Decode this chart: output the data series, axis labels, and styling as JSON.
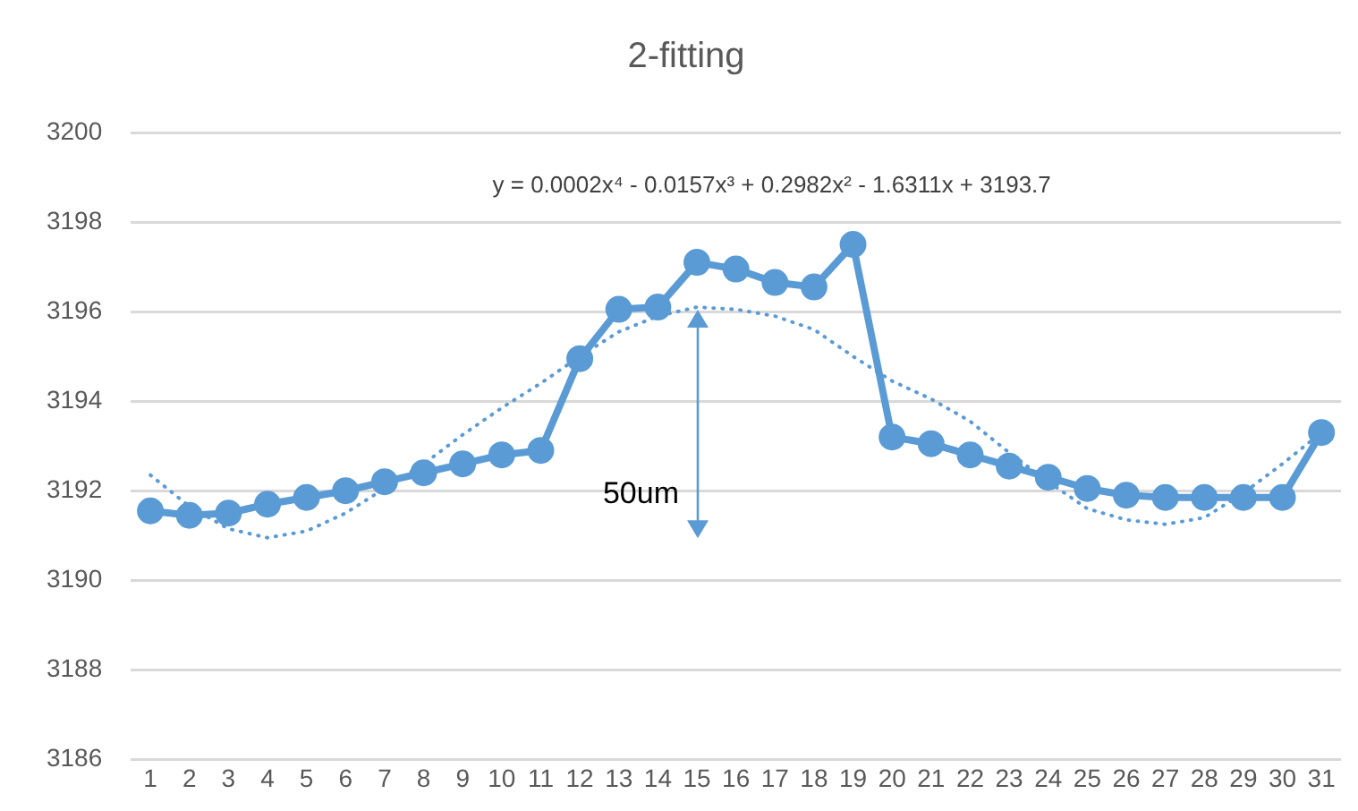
{
  "chart_data": {
    "type": "line",
    "title": "2-fitting",
    "annotations": [
      "y = 0.0002x⁴ - 0.0157x³ + 0.2982x² - 1.6311x + 3193.7",
      {
        "text": "50um",
        "x": 15,
        "y": 3196.05
      }
    ],
    "x": [
      1,
      2,
      3,
      4,
      5,
      6,
      7,
      8,
      9,
      10,
      11,
      12,
      13,
      14,
      15,
      16,
      17,
      18,
      19,
      20,
      21,
      22,
      23,
      24,
      25,
      26,
      27,
      28,
      29,
      30,
      31
    ],
    "series": [
      {
        "color": "#5b9bd5",
        "marker": "circle",
        "line_style": "solid",
        "values": [
          3191.55,
          3191.45,
          3191.5,
          3191.7,
          3191.85,
          3192.0,
          3192.2,
          3192.4,
          3192.6,
          3192.8,
          3192.9,
          3194.95,
          3196.05,
          3196.1,
          3197.1,
          3196.95,
          3196.65,
          3196.55,
          3197.5,
          3193.2,
          3193.05,
          3192.8,
          3192.55,
          3192.3,
          3192.05,
          3191.9,
          3191.85,
          3191.85,
          3191.85,
          3191.85,
          3193.3
        ]
      },
      {
        "color": "#5b9bd5",
        "marker": "none",
        "line_style": "dotted",
        "x": [
          1,
          2,
          3,
          4,
          5,
          6,
          7,
          8,
          9,
          10,
          11,
          12,
          13,
          14,
          15,
          16,
          17,
          18,
          19,
          20,
          21,
          22,
          23,
          24,
          25,
          26,
          27,
          28,
          29,
          30,
          31
        ],
        "values": [
          3192.35,
          3191.65,
          3191.15,
          3190.95,
          3191.1,
          3191.5,
          3192.05,
          3192.6,
          3193.25,
          3193.85,
          3194.4,
          3195.0,
          3195.55,
          3195.9,
          3196.1,
          3196.05,
          3195.9,
          3195.6,
          3195.0,
          3194.45,
          3194.05,
          3193.55,
          3192.85,
          3192.2,
          3191.6,
          3191.35,
          3191.25,
          3191.4,
          3191.95,
          3192.6,
          3193.3
        ]
      }
    ],
    "xlim": [
      0.5,
      31.5
    ],
    "xticks": [
      1,
      2,
      3,
      4,
      5,
      6,
      7,
      8,
      9,
      10,
      11,
      12,
      13,
      14,
      15,
      16,
      17,
      18,
      19,
      20,
      21,
      22,
      23,
      24,
      25,
      26,
      27,
      28,
      29,
      30,
      31
    ],
    "ylim": [
      3186,
      3200
    ],
    "yticks": [
      3186,
      3188,
      3190,
      3192,
      3194,
      3196,
      3198,
      3200
    ],
    "grid": "y",
    "legend": false
  }
}
